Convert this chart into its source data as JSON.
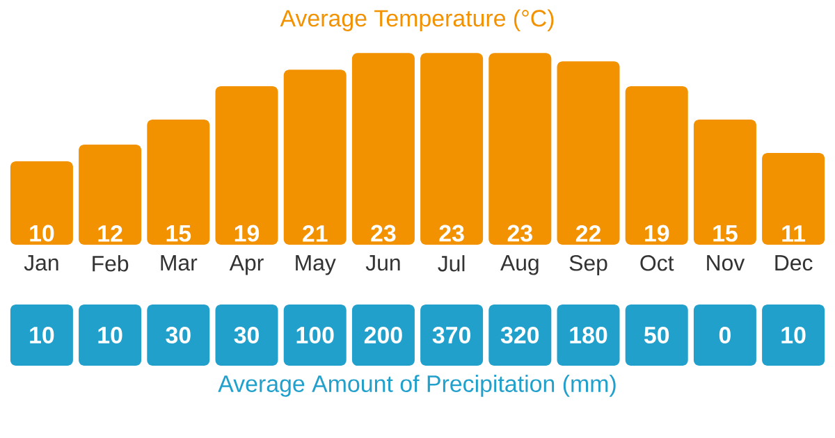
{
  "chart_data": [
    {
      "type": "bar",
      "title": "Average Temperature (°C)",
      "categories": [
        "Jan",
        "Feb",
        "Mar",
        "Apr",
        "May",
        "Jun",
        "Jul",
        "Aug",
        "Sep",
        "Oct",
        "Nov",
        "Dec"
      ],
      "values": [
        10,
        12,
        15,
        19,
        21,
        23,
        23,
        23,
        22,
        19,
        15,
        11
      ],
      "color": "#f39200",
      "data_labels": true
    },
    {
      "type": "other",
      "title": "Average Amount of Precipitation (mm)",
      "values": [
        10,
        10,
        30,
        30,
        100,
        200,
        370,
        320,
        180,
        50,
        0,
        10
      ],
      "value_labels": [
        "10",
        "10",
        "30",
        "30",
        "100",
        "200",
        "370",
        "320",
        "180",
        "50",
        "0",
        "10"
      ],
      "color": "#22a0cc"
    }
  ]
}
